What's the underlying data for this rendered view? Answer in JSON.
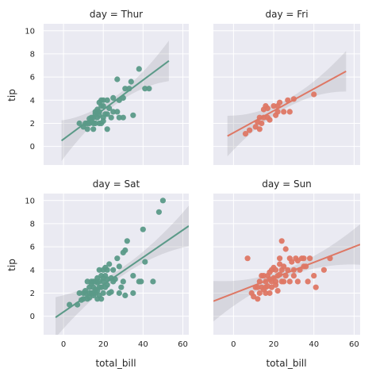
{
  "chart_data": {
    "type": "scatter",
    "layout": "2x2 facet grid, shared axes",
    "xlabel": "total_bill",
    "ylabel": "tip",
    "xlim": [
      -10,
      63
    ],
    "ylim": [
      -1.6,
      10.6
    ],
    "xticks": [
      0,
      20,
      40,
      60
    ],
    "yticks": [
      0,
      2,
      4,
      6,
      8,
      10
    ],
    "grid": true,
    "background": "#EAEAF2",
    "panels": [
      {
        "title": "day = Thur",
        "color": "#5B9A88",
        "fit": {
          "x0": -1,
          "y0": 0.5,
          "x1": 53,
          "y1": 7.4
        },
        "points": [
          [
            8,
            2
          ],
          [
            10,
            1.7
          ],
          [
            11,
            2
          ],
          [
            12,
            1.5
          ],
          [
            12,
            2
          ],
          [
            13,
            2.4
          ],
          [
            13,
            2
          ],
          [
            14,
            2.5
          ],
          [
            14,
            2.2
          ],
          [
            15,
            2.5
          ],
          [
            15,
            1.5
          ],
          [
            15,
            2
          ],
          [
            16,
            3
          ],
          [
            16,
            2
          ],
          [
            16,
            2.8
          ],
          [
            17,
            2.5
          ],
          [
            17,
            3.2
          ],
          [
            18,
            2
          ],
          [
            18,
            2.7
          ],
          [
            18,
            3.8
          ],
          [
            18,
            3
          ],
          [
            19,
            3.5
          ],
          [
            19,
            2
          ],
          [
            19,
            4
          ],
          [
            20,
            3.5
          ],
          [
            20,
            2.2
          ],
          [
            20,
            4
          ],
          [
            20,
            2.5
          ],
          [
            21,
            2.8
          ],
          [
            22,
            2.8
          ],
          [
            22,
            1.5
          ],
          [
            22,
            4
          ],
          [
            23,
            3.3
          ],
          [
            24,
            2.5
          ],
          [
            25,
            3
          ],
          [
            25,
            4.2
          ],
          [
            27,
            3
          ],
          [
            27,
            5.8
          ],
          [
            28,
            4
          ],
          [
            28,
            2.5
          ],
          [
            30,
            2.5
          ],
          [
            30,
            4.2
          ],
          [
            31,
            5
          ],
          [
            33,
            5
          ],
          [
            34,
            5.6
          ],
          [
            35,
            2.7
          ],
          [
            38,
            6.7
          ],
          [
            41,
            5
          ],
          [
            43,
            5
          ]
        ]
      },
      {
        "title": "day = Fri",
        "color": "#DE7764",
        "fit": {
          "x0": -3,
          "y0": 0.9,
          "x1": 56,
          "y1": 6.5
        },
        "points": [
          [
            6,
            1.1
          ],
          [
            8,
            1.4
          ],
          [
            11,
            1.7
          ],
          [
            12,
            2.1
          ],
          [
            13,
            1.5
          ],
          [
            13,
            2.5
          ],
          [
            14,
            2
          ],
          [
            15,
            2.5
          ],
          [
            15,
            3.2
          ],
          [
            16,
            3.5
          ],
          [
            17,
            2.5
          ],
          [
            17,
            3.3
          ],
          [
            18,
            2.3
          ],
          [
            20,
            3.5
          ],
          [
            21,
            2.7
          ],
          [
            22,
            3
          ],
          [
            22,
            3.5
          ],
          [
            23,
            3.8
          ],
          [
            25,
            3
          ],
          [
            27,
            4
          ],
          [
            28,
            3
          ],
          [
            30,
            4.1
          ],
          [
            40,
            4.5
          ]
        ]
      },
      {
        "title": "day = Sat",
        "color": "#5B9A88",
        "fit": {
          "x0": -4,
          "y0": -0.1,
          "x1": 63,
          "y1": 7.8
        },
        "points": [
          [
            3,
            1
          ],
          [
            7,
            1
          ],
          [
            8,
            2
          ],
          [
            9,
            1.4
          ],
          [
            10,
            1.5
          ],
          [
            10,
            2
          ],
          [
            11,
            2
          ],
          [
            11,
            2.2
          ],
          [
            12,
            1.5
          ],
          [
            12,
            3
          ],
          [
            13,
            2
          ],
          [
            13,
            1.6
          ],
          [
            13,
            2.5
          ],
          [
            14,
            2
          ],
          [
            14,
            2.8
          ],
          [
            14,
            3
          ],
          [
            15,
            1.8
          ],
          [
            15,
            2
          ],
          [
            15,
            3
          ],
          [
            15,
            2.5
          ],
          [
            16,
            2
          ],
          [
            16,
            3
          ],
          [
            16,
            2.3
          ],
          [
            17,
            1.5
          ],
          [
            17,
            2.2
          ],
          [
            17,
            3.3
          ],
          [
            17,
            2.9
          ],
          [
            18,
            3
          ],
          [
            18,
            2.5
          ],
          [
            18,
            4
          ],
          [
            18,
            1.8
          ],
          [
            19,
            2.5
          ],
          [
            19,
            3.5
          ],
          [
            19,
            1.5
          ],
          [
            20,
            2
          ],
          [
            20,
            3
          ],
          [
            20,
            4
          ],
          [
            20,
            3.3
          ],
          [
            21,
            3.5
          ],
          [
            21,
            4.2
          ],
          [
            21,
            2.5
          ],
          [
            22,
            3.2
          ],
          [
            22,
            4
          ],
          [
            22,
            2.7
          ],
          [
            23,
            2
          ],
          [
            23,
            4.5
          ],
          [
            24,
            3.3
          ],
          [
            24,
            2.1
          ],
          [
            25,
            4
          ],
          [
            25,
            3
          ],
          [
            26,
            3.2
          ],
          [
            27,
            5
          ],
          [
            28,
            2
          ],
          [
            28,
            4.3
          ],
          [
            29,
            2.5
          ],
          [
            30,
            5.5
          ],
          [
            30,
            3
          ],
          [
            31,
            1.8
          ],
          [
            31,
            5.7
          ],
          [
            32,
            6.5
          ],
          [
            35,
            2
          ],
          [
            35,
            3.5
          ],
          [
            38,
            3
          ],
          [
            39,
            3
          ],
          [
            40,
            7.5
          ],
          [
            41,
            4.7
          ],
          [
            45,
            3
          ],
          [
            48,
            9
          ],
          [
            50,
            10
          ]
        ]
      },
      {
        "title": "day = Sun",
        "color": "#DE7764",
        "fit": {
          "x0": -10,
          "y0": 1.3,
          "x1": 63,
          "y1": 6.2
        },
        "points": [
          [
            7,
            5
          ],
          [
            9,
            2
          ],
          [
            10,
            1.7
          ],
          [
            11,
            2.5
          ],
          [
            12,
            1.5
          ],
          [
            12,
            2.5
          ],
          [
            13,
            3
          ],
          [
            13,
            2
          ],
          [
            14,
            2.5
          ],
          [
            14,
            3.5
          ],
          [
            15,
            2.3
          ],
          [
            15,
            3.5
          ],
          [
            16,
            2
          ],
          [
            16,
            3
          ],
          [
            16,
            2.5
          ],
          [
            17,
            3.5
          ],
          [
            17,
            2.6
          ],
          [
            18,
            3.2
          ],
          [
            18,
            2
          ],
          [
            18,
            3.8
          ],
          [
            19,
            3
          ],
          [
            19,
            4
          ],
          [
            19,
            2.5
          ],
          [
            20,
            3.3
          ],
          [
            20,
            4.2
          ],
          [
            21,
            3
          ],
          [
            21,
            4
          ],
          [
            21,
            2.7
          ],
          [
            22,
            3.5
          ],
          [
            22,
            2.2
          ],
          [
            23,
            4.5
          ],
          [
            23,
            3.6
          ],
          [
            23,
            5
          ],
          [
            24,
            3
          ],
          [
            24,
            6.5
          ],
          [
            24,
            4
          ],
          [
            25,
            3
          ],
          [
            25,
            4.3
          ],
          [
            26,
            3.5
          ],
          [
            26,
            5.8
          ],
          [
            27,
            4
          ],
          [
            28,
            3
          ],
          [
            28,
            5
          ],
          [
            29,
            4.7
          ],
          [
            30,
            3.5
          ],
          [
            30,
            4
          ],
          [
            31,
            5
          ],
          [
            32,
            4.8
          ],
          [
            32,
            3
          ],
          [
            33,
            4
          ],
          [
            34,
            5
          ],
          [
            35,
            4.3
          ],
          [
            35,
            5
          ],
          [
            36,
            4.3
          ],
          [
            37,
            3
          ],
          [
            38,
            5
          ],
          [
            40,
            3.5
          ],
          [
            41,
            2.5
          ],
          [
            45,
            4
          ],
          [
            48,
            5
          ]
        ]
      }
    ]
  }
}
